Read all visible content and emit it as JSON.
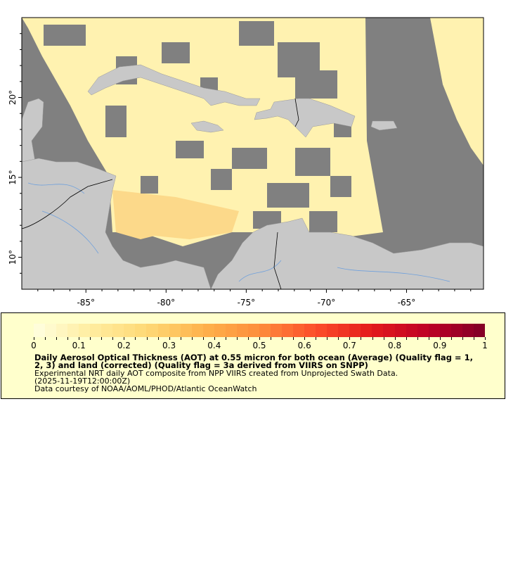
{
  "map": {
    "lon_range": [
      -89.0,
      -60.2
    ],
    "lat_range": [
      8.0,
      25.0
    ],
    "x_ticks": [
      {
        "lon": -85,
        "label": "-85°"
      },
      {
        "lon": -80,
        "label": "-80°"
      },
      {
        "lon": -75,
        "label": "-75°"
      },
      {
        "lon": -70,
        "label": "-70°"
      },
      {
        "lon": -65,
        "label": "-65°"
      }
    ],
    "y_ticks": [
      {
        "lat": 20,
        "label": "20°"
      },
      {
        "lat": 15,
        "label": "15°"
      },
      {
        "lat": 10,
        "label": "10°"
      }
    ],
    "colors": {
      "no_data": "#808080",
      "land": "#c8c8c8",
      "rivers": "#6fa0dc",
      "borders": "#000000"
    }
  },
  "legend": {
    "colorbar": {
      "min": 0,
      "max": 1,
      "colors": [
        "#ffffe0",
        "#ffeda0",
        "#fed976",
        "#feb24c",
        "#fd8d3c",
        "#fc4e2a",
        "#e31a1c",
        "#bd0026",
        "#800026"
      ],
      "ticks": [
        "0",
        "0.1",
        "0.2",
        "0.3",
        "0.4",
        "0.5",
        "0.6",
        "0.7",
        "0.8",
        "0.9",
        "1"
      ]
    },
    "title_line1": "Daily Aerosol Optical Thickness (AOT) at 0.55 micron for both ocean (Average) (Quality flag = 1,",
    "title_line2": "2, 3) and land (corrected) (Quality flag = 3a derived from VIIRS on SNPP)",
    "summary": "Experimental NRT daily AOT composite from NPP VIIRS created from Unprojected Swath Data.",
    "time": "(2025-11-19T12:00:00Z)",
    "credit": "Data courtesy of NOAA/AOML/PHOD/Atlantic OceanWatch"
  }
}
